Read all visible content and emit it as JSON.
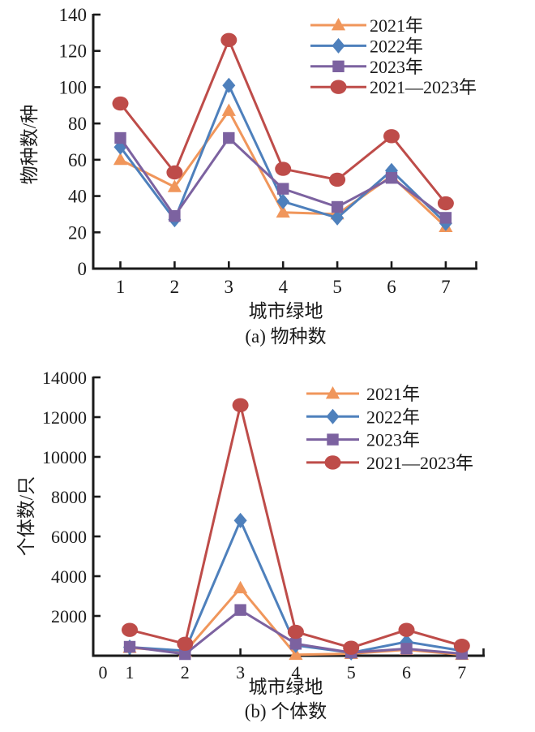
{
  "figure": {
    "background_color": "#ffffff",
    "text_color": "#1a1a1a",
    "axis_color": "#1a1a1a"
  },
  "chart_data": [
    {
      "type": "line",
      "caption": "(a) 物种数",
      "xlabel": "城市绿地",
      "ylabel": "物种数/种",
      "categories": [
        1,
        2,
        3,
        4,
        5,
        6,
        7
      ],
      "ylim": [
        0,
        140
      ],
      "ytick_step": 20,
      "yticks": [
        0,
        20,
        40,
        60,
        80,
        100,
        120,
        140
      ],
      "show_zero_ytick_label": true,
      "x_zero_label": "",
      "grid": "off",
      "legend_position": "top-right-inside",
      "series": [
        {
          "name": "2021年",
          "color": "#F0965B",
          "marker": "triangle",
          "values": [
            60,
            45,
            87,
            31,
            30,
            51,
            23
          ]
        },
        {
          "name": "2022年",
          "color": "#4E80BC",
          "marker": "diamond",
          "values": [
            67,
            27,
            101,
            37,
            28,
            54,
            25
          ]
        },
        {
          "name": "2023年",
          "color": "#7C62A0",
          "marker": "square",
          "values": [
            72,
            29,
            72,
            44,
            34,
            50,
            28
          ]
        },
        {
          "name": "2021—2023年",
          "color": "#BE4C49",
          "marker": "circle",
          "values": [
            91,
            53,
            126,
            55,
            49,
            73,
            36
          ]
        }
      ]
    },
    {
      "type": "line",
      "caption": "(b) 个体数",
      "xlabel": "城市绿地",
      "ylabel": "个体数/只",
      "categories": [
        1,
        2,
        3,
        4,
        5,
        6,
        7
      ],
      "ylim": [
        0,
        14000
      ],
      "ytick_step": 2000,
      "yticks": [
        2000,
        4000,
        6000,
        8000,
        10000,
        12000,
        14000
      ],
      "show_zero_ytick_label": false,
      "x_zero_label": "0",
      "grid": "off",
      "legend_position": "top-right-inside",
      "series": [
        {
          "name": "2021年",
          "color": "#F0965B",
          "marker": "triangle",
          "values": [
            400,
            200,
            3400,
            50,
            100,
            300,
            50
          ]
        },
        {
          "name": "2022年",
          "color": "#4E80BC",
          "marker": "diamond",
          "values": [
            430,
            250,
            6800,
            520,
            150,
            700,
            250
          ]
        },
        {
          "name": "2023年",
          "color": "#7C62A0",
          "marker": "square",
          "values": [
            450,
            80,
            2300,
            600,
            160,
            350,
            100
          ]
        },
        {
          "name": "2021—2023年",
          "color": "#BE4C49",
          "marker": "circle",
          "values": [
            1300,
            600,
            12600,
            1200,
            400,
            1300,
            500
          ]
        }
      ]
    }
  ]
}
